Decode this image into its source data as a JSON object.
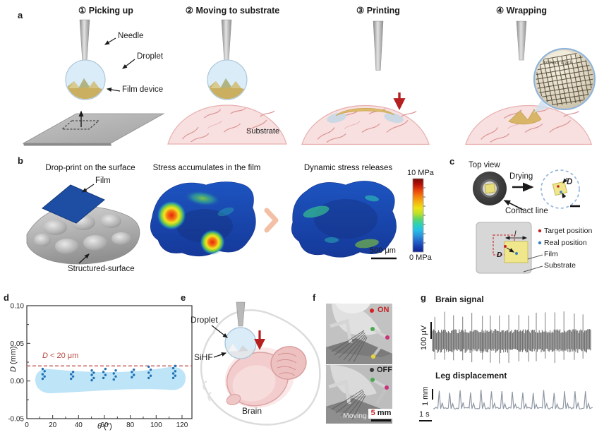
{
  "figure": {
    "panel_a": {
      "label": "a",
      "steps": [
        {
          "title": "① Picking up"
        },
        {
          "title": "② Moving to substrate"
        },
        {
          "title": "③ Printing"
        },
        {
          "title": "④ Wrapping"
        }
      ],
      "annotations": {
        "needle": "Needle",
        "droplet": "Droplet",
        "film_device": "Film device",
        "substrate": "Substrate",
        "inset_caption": "Without crack"
      }
    },
    "panel_b": {
      "label": "b",
      "titles": [
        "Drop-print on the surface",
        "Stress accumulates in the film",
        "Dynamic stress releases"
      ],
      "annotations": {
        "film": "Film",
        "surface": "Structured-surface",
        "scalebar": "500 μm"
      },
      "colorbar": {
        "max": "10 MPa",
        "min": "0 MPa"
      }
    },
    "panel_c": {
      "label": "c",
      "top_view": "Top view",
      "drying": "Drying",
      "contact_line": "Contact line",
      "distance_var": "D",
      "length_var": "l",
      "legend": {
        "target": "Target position",
        "real": "Real position",
        "film": "Film",
        "substrate": "Substrate"
      }
    },
    "panel_d": {
      "label": "d",
      "threshold_var": "D",
      "threshold_rest": " < 20 μm",
      "ylabel_var": "D",
      "ylabel_rest": " (mm)",
      "xlabel_var": "θ",
      "xlabel_rest": " (°)"
    },
    "panel_e": {
      "label": "e",
      "droplet": "Droplet",
      "sihf": "SiHF",
      "brain": "Brain"
    },
    "panel_f": {
      "label": "f",
      "on": "ON",
      "off": "OFF",
      "moving": "Moving",
      "scale_value": "5",
      "scale_unit": " mm"
    },
    "panel_g": {
      "label": "g",
      "brain_title": "Brain signal",
      "leg_title": "Leg displacement",
      "scale_voltage": "100 μV",
      "scale_length": "1 mm",
      "scale_time": "1 s"
    }
  },
  "chart_data": {
    "type": "scatter",
    "xlabel": "θ (°)",
    "ylabel": "D (mm)",
    "xlim": [
      0,
      130
    ],
    "ylim": [
      -0.05,
      0.1
    ],
    "xticks": [
      0,
      20,
      40,
      60,
      80,
      100,
      120
    ],
    "yticks": {
      "values": [
        -0.05,
        0.0,
        0.05,
        0.1
      ],
      "labels": [
        "-0.05",
        "0.00",
        "0.05",
        "0.10"
      ]
    },
    "grid": false,
    "threshold_line": {
      "y": 0.02,
      "label": "D < 20 μm",
      "style": "dashed",
      "color": "#b5493f"
    },
    "clusters": [
      {
        "theta": 13,
        "D_mm": [
          0.003,
          0.006,
          0.009,
          0.013,
          0.016
        ]
      },
      {
        "theta": 35,
        "D_mm": [
          0.003,
          0.006,
          0.009,
          0.012
        ]
      },
      {
        "theta": 51,
        "D_mm": [
          0.001,
          0.004,
          0.008,
          0.011,
          0.014
        ]
      },
      {
        "theta": 60,
        "D_mm": [
          0.004,
          0.008,
          0.012,
          0.016
        ]
      },
      {
        "theta": 68,
        "D_mm": [
          0.002,
          0.006,
          0.01,
          0.014
        ]
      },
      {
        "theta": 82,
        "D_mm": [
          0.005,
          0.008,
          0.012,
          0.015
        ]
      },
      {
        "theta": 95,
        "D_mm": [
          0.004,
          0.007,
          0.011,
          0.015,
          0.019
        ]
      },
      {
        "theta": 114,
        "D_mm": [
          0.004,
          0.007,
          0.01,
          0.013,
          0.017,
          0.02
        ]
      }
    ]
  },
  "colors": {
    "droplet_fill": "#d9ecf8",
    "film_tan": "#d2b469",
    "brain_pink": "#f8e0e0",
    "film_blue": "#1d4ea3",
    "stress_low": "#0e2390",
    "stress_high": "#790603",
    "scatter_dot": "#2272b5",
    "scatter_band": "#bde4f7",
    "threshold_red": "#b5493f",
    "arrow_red": "#b51f1f"
  }
}
